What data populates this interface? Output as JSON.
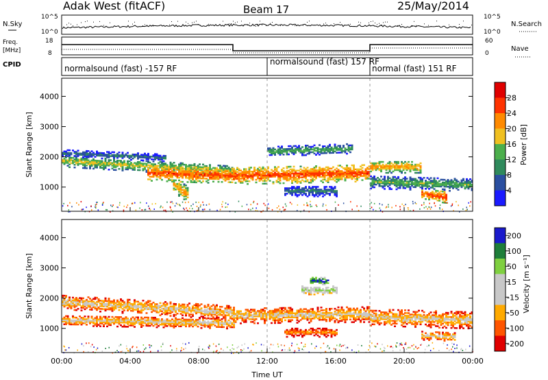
{
  "header": {
    "station": "Adak West (fitACF)",
    "beam": "Beam 17",
    "date": "25/May/2014"
  },
  "summary": {
    "nsky_label": "N.Sky",
    "nsearch_label": "N.Search",
    "freq_label_line1": "Freq.",
    "freq_label_line2": "[MHz]",
    "nave_label": "Nave",
    "cpid_label": "CPID",
    "nsky_ticks": [
      "10^5",
      "10^0"
    ],
    "freq_ticks": [
      "18",
      "8"
    ],
    "nave_ticks": [
      "60",
      "0"
    ],
    "cpid_segments": [
      {
        "label": "normalsound (fast) -157 RF",
        "start_h": 0
      },
      {
        "label": "normalsound (fast) 157 RF",
        "start_h": 12
      },
      {
        "label": "normal (fast) 151 RF",
        "start_h": 18
      }
    ]
  },
  "colors": {
    "power_scale": [
      "#1a1aff",
      "#2a4fa0",
      "#2f8a5c",
      "#4caf4c",
      "#f0c020",
      "#ff8a00",
      "#ff3300",
      "#e00000"
    ],
    "velocity_scale": [
      "#e00000",
      "#ff5500",
      "#ffaa00",
      "#c8c8c8",
      "#c8c8c8",
      "#7fd040",
      "#1e7e3a",
      "#1a1acc"
    ]
  },
  "chart_data": [
    {
      "type": "heatmap",
      "title": "Power",
      "xlabel": "",
      "ylabel": "Slant Range [km]",
      "x_ticks": [
        "00:00",
        "04:00",
        "08:00",
        "12:00",
        "16:00",
        "20:00",
        "00:00"
      ],
      "y_ticks": [
        "1000",
        "2000",
        "3000",
        "4000"
      ],
      "ylim": [
        200,
        4600
      ],
      "xlim_hours": [
        0,
        24
      ],
      "colorbar_label": "Power [dB]",
      "colorbar_ticks": [
        "4",
        "8",
        "12",
        "16",
        "20",
        "24",
        "28"
      ],
      "bands": [
        {
          "t0": 0,
          "t1": 10,
          "r_start": 1900,
          "r_end": 1550,
          "thick": 200,
          "level": 4
        },
        {
          "t0": 0,
          "t1": 6,
          "r_start": 2150,
          "r_end": 2000,
          "thick": 120,
          "level": 2
        },
        {
          "t0": 5,
          "t1": 10,
          "r_start": 1500,
          "r_end": 1400,
          "thick": 260,
          "level": 6
        },
        {
          "t0": 6.5,
          "t1": 7.3,
          "r_start": 1100,
          "r_end": 800,
          "thick": 250,
          "level": 5
        },
        {
          "t0": 10,
          "t1": 18,
          "r_start": 1400,
          "r_end": 1500,
          "thick": 280,
          "level": 6
        },
        {
          "t0": 12,
          "t1": 17,
          "r_start": 2200,
          "r_end": 2300,
          "thick": 160,
          "level": 3
        },
        {
          "t0": 13,
          "t1": 16,
          "r_start": 900,
          "r_end": 900,
          "thick": 180,
          "level": 2
        },
        {
          "t0": 18,
          "t1": 21,
          "r_start": 1700,
          "r_end": 1700,
          "thick": 200,
          "level": 5
        },
        {
          "t0": 18,
          "t1": 24,
          "r_start": 1200,
          "r_end": 1100,
          "thick": 220,
          "level": 3
        },
        {
          "t0": 21,
          "t1": 22.5,
          "r_start": 800,
          "r_end": 700,
          "thick": 200,
          "level": 6
        }
      ]
    },
    {
      "type": "heatmap",
      "title": "Velocity",
      "xlabel": "Time UT",
      "ylabel": "Slant Range [km]",
      "x_ticks": [
        "00:00",
        "04:00",
        "08:00",
        "12:00",
        "16:00",
        "20:00",
        "00:00"
      ],
      "y_ticks": [
        "1000",
        "2000",
        "3000",
        "4000"
      ],
      "ylim": [
        200,
        4600
      ],
      "xlim_hours": [
        0,
        24
      ],
      "colorbar_label": "Velocity [m s⁻¹]",
      "colorbar_ticks": [
        "200",
        "100",
        "50",
        "15",
        "-15",
        "-50",
        "-100",
        "-200"
      ],
      "bands": [
        {
          "t0": 0,
          "t1": 10,
          "r_start": 1900,
          "r_end": 1550,
          "thick": 240,
          "level": 3
        },
        {
          "t0": 0,
          "t1": 10,
          "r_start": 1300,
          "r_end": 1200,
          "thick": 180,
          "level": 3
        },
        {
          "t0": 10,
          "t1": 18,
          "r_start": 1450,
          "r_end": 1500,
          "thick": 260,
          "level": 3
        },
        {
          "t0": 14,
          "t1": 16,
          "r_start": 2300,
          "r_end": 2300,
          "thick": 150,
          "level": 5
        },
        {
          "t0": 14.5,
          "t1": 15.5,
          "r_start": 2600,
          "r_end": 2600,
          "thick": 120,
          "level": 7
        },
        {
          "t0": 13,
          "t1": 16,
          "r_start": 900,
          "r_end": 900,
          "thick": 150,
          "level": 2
        },
        {
          "t0": 18,
          "t1": 24,
          "r_start": 1400,
          "r_end": 1300,
          "thick": 280,
          "level": 3
        },
        {
          "t0": 21,
          "t1": 23,
          "r_start": 800,
          "r_end": 750,
          "thick": 150,
          "level": 3
        }
      ]
    }
  ]
}
